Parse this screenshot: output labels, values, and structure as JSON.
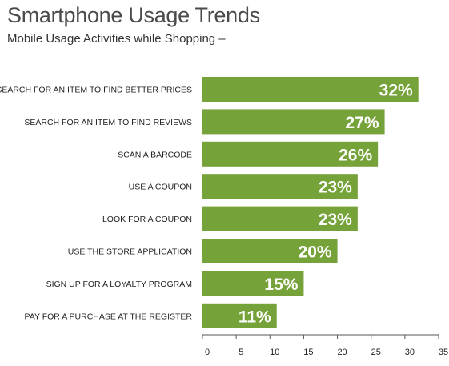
{
  "chart_data": {
    "type": "bar",
    "orientation": "horizontal",
    "title": "Smartphone Usage Trends",
    "subtitle": "Mobile Usage Activities while Shopping –",
    "categories": [
      "SEARCH FOR AN ITEM TO FIND BETTER PRICES",
      "SEARCH FOR AN ITEM TO FIND REVIEWS",
      "SCAN A BARCODE",
      "USE A COUPON",
      "LOOK FOR A COUPON",
      "USE THE STORE APPLICATION",
      "SIGN UP FOR A LOYALTY PROGRAM",
      "PAY FOR A PURCHASE AT THE REGISTER"
    ],
    "values": [
      32,
      27,
      26,
      23,
      23,
      20,
      15,
      11
    ],
    "value_labels": [
      "32%",
      "27%",
      "26%",
      "23%",
      "23%",
      "20%",
      "15%",
      "11%"
    ],
    "xlim": [
      0,
      35
    ],
    "xticks": [
      0,
      5,
      10,
      15,
      20,
      25,
      30,
      35
    ],
    "grid": false,
    "bar_color": "#76a23a"
  }
}
